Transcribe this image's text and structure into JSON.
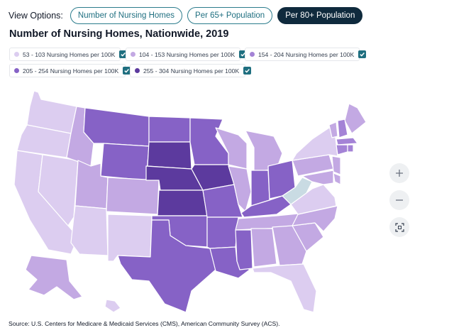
{
  "view_options": {
    "label": "View Options:",
    "buttons": [
      {
        "label": "Number of Nursing Homes",
        "active": false
      },
      {
        "label": "Per 65+ Population",
        "active": false
      },
      {
        "label": "Per 80+ Population",
        "active": true
      }
    ]
  },
  "map_title": "Number of Nursing Homes, Nationwide, 2019",
  "legend": [
    {
      "label": "53 - 103 Nursing Homes per 100K",
      "color": "#dccdf0",
      "checked": true
    },
    {
      "label": "104 - 153 Nursing Homes per 100K",
      "color": "#c3a9e3",
      "checked": true
    },
    {
      "label": "154 - 204 Nursing Homes per 100K",
      "color": "#a483d6",
      "checked": true
    },
    {
      "label": "205 - 254 Nursing Homes per 100K",
      "color": "#8662c6",
      "checked": true
    },
    {
      "label": "255 - 304 Nursing Homes per 100K",
      "color": "#5c3a9e",
      "checked": true
    }
  ],
  "no_data_color": "#c9dbe3",
  "map_states": [
    {
      "code": "WA",
      "bin": 0
    },
    {
      "code": "OR",
      "bin": 0
    },
    {
      "code": "CA",
      "bin": 0
    },
    {
      "code": "NV",
      "bin": 0
    },
    {
      "code": "ID",
      "bin": 1
    },
    {
      "code": "MT",
      "bin": 3
    },
    {
      "code": "WY",
      "bin": 3
    },
    {
      "code": "UT",
      "bin": 1
    },
    {
      "code": "AZ",
      "bin": 0
    },
    {
      "code": "CO",
      "bin": 1
    },
    {
      "code": "NM",
      "bin": 0
    },
    {
      "code": "ND",
      "bin": 3
    },
    {
      "code": "SD",
      "bin": 4
    },
    {
      "code": "NE",
      "bin": 4
    },
    {
      "code": "KS",
      "bin": 4
    },
    {
      "code": "OK",
      "bin": 3
    },
    {
      "code": "TX",
      "bin": 3
    },
    {
      "code": "MN",
      "bin": 3
    },
    {
      "code": "IA",
      "bin": 4
    },
    {
      "code": "MO",
      "bin": 3
    },
    {
      "code": "AR",
      "bin": 3
    },
    {
      "code": "LA",
      "bin": 3
    },
    {
      "code": "WI",
      "bin": 1
    },
    {
      "code": "IL",
      "bin": 1
    },
    {
      "code": "MI",
      "bin": 1
    },
    {
      "code": "IN",
      "bin": 3
    },
    {
      "code": "OH",
      "bin": 3
    },
    {
      "code": "KY",
      "bin": 3
    },
    {
      "code": "TN",
      "bin": 1
    },
    {
      "code": "MS",
      "bin": 3
    },
    {
      "code": "AL",
      "bin": 1
    },
    {
      "code": "GA",
      "bin": 1
    },
    {
      "code": "FL",
      "bin": 0
    },
    {
      "code": "SC",
      "bin": 1
    },
    {
      "code": "NC",
      "bin": 1
    },
    {
      "code": "VA",
      "bin": 0
    },
    {
      "code": "WV",
      "bin": -1
    },
    {
      "code": "PA",
      "bin": 1
    },
    {
      "code": "NY",
      "bin": 0
    },
    {
      "code": "ME",
      "bin": 1
    },
    {
      "code": "VT",
      "bin": 1
    },
    {
      "code": "NH",
      "bin": 2
    },
    {
      "code": "MA",
      "bin": 2
    },
    {
      "code": "CT",
      "bin": 2
    },
    {
      "code": "RI",
      "bin": 2
    },
    {
      "code": "NJ",
      "bin": 1
    },
    {
      "code": "DE",
      "bin": 1
    },
    {
      "code": "MD",
      "bin": 1
    },
    {
      "code": "AK",
      "bin": 1
    },
    {
      "code": "HI",
      "bin": 0
    }
  ],
  "zoom": {
    "in_icon": "plus-icon",
    "out_icon": "minus-icon",
    "fit_icon": "fit-screen-icon"
  },
  "source": "Source: U.S. Centers for Medicare & Medicaid Services (CMS), American Community Survey (ACS)."
}
